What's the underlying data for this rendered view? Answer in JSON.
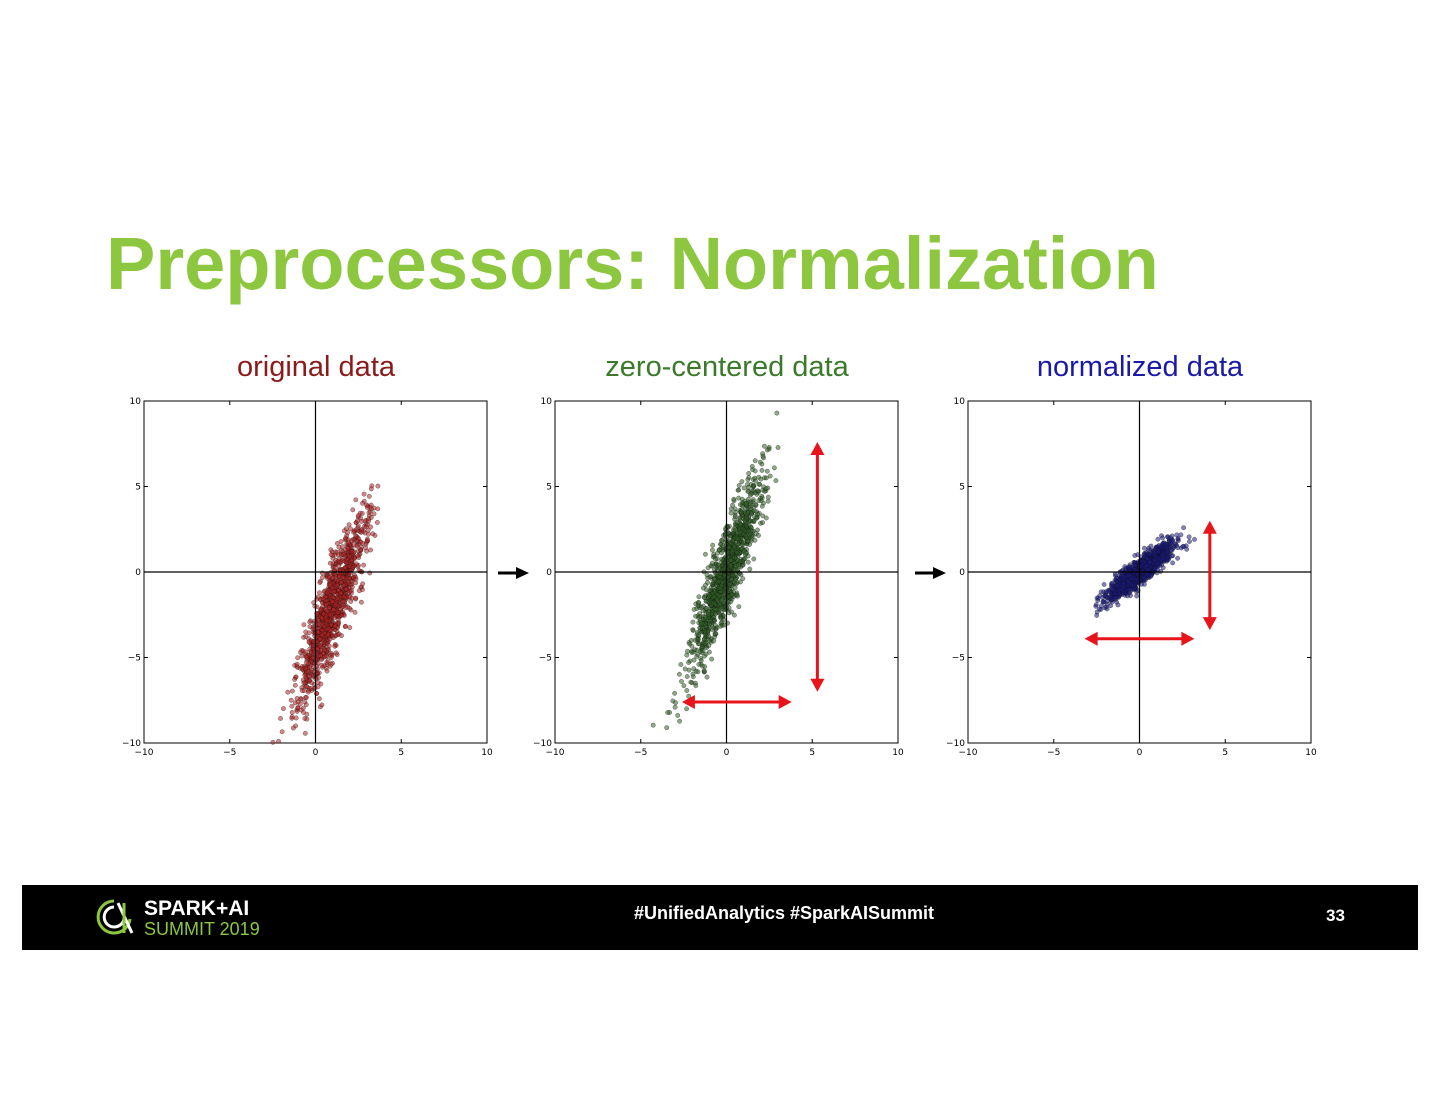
{
  "slide": {
    "title": "Preprocessors: Normalization",
    "title_color": "#8dc63f"
  },
  "chart_data": [
    {
      "type": "scatter",
      "title": "original data",
      "title_color": "#8b1a1a",
      "point_color": "#b22222",
      "xlim": [
        -10,
        10
      ],
      "ylim": [
        -10,
        10
      ],
      "ticks": [
        -10,
        -5,
        0,
        5,
        10
      ],
      "tick_labels": [
        "−10",
        "−5",
        "0",
        "5",
        "10"
      ],
      "distribution": {
        "center": [
          1.0,
          -2.0
        ],
        "major_std": 2.9,
        "minor_std": 0.45,
        "angle_deg": 71,
        "count": 1100
      },
      "arrows": []
    },
    {
      "type": "scatter",
      "title": "zero-centered data",
      "title_color": "#3a7a2a",
      "point_color": "#2f5f24",
      "xlim": [
        -10,
        10
      ],
      "ylim": [
        -10,
        10
      ],
      "ticks": [
        -10,
        -5,
        0,
        5,
        10
      ],
      "tick_labels": [
        "−10",
        "−5",
        "0",
        "5",
        "10"
      ],
      "distribution": {
        "center": [
          0,
          0
        ],
        "major_std": 2.9,
        "minor_std": 0.45,
        "angle_deg": 71,
        "count": 1100
      },
      "arrows": [
        {
          "orientation": "vertical",
          "x": 5.3,
          "from": -7,
          "to": 7.6
        },
        {
          "orientation": "horizontal",
          "y": -7.6,
          "from": -2.6,
          "to": 3.8
        }
      ]
    },
    {
      "type": "scatter",
      "title": "normalized data",
      "title_color": "#1a1aa6",
      "point_color": "#1a1a80",
      "xlim": [
        -10,
        10
      ],
      "ylim": [
        -10,
        10
      ],
      "ticks": [
        -10,
        -5,
        0,
        5,
        10
      ],
      "tick_labels": [
        "−10",
        "−5",
        "0",
        "5",
        "10"
      ],
      "distribution": {
        "center": [
          0,
          0
        ],
        "major_std": 1.25,
        "minor_std": 0.3,
        "angle_deg": 40,
        "count": 1100
      },
      "arrows": [
        {
          "orientation": "vertical",
          "x": 4.1,
          "from": -3.4,
          "to": 3.0
        },
        {
          "orientation": "horizontal",
          "y": -3.9,
          "from": -3.2,
          "to": 3.2
        }
      ]
    }
  ],
  "footer": {
    "logo_top": "SPARK+AI",
    "logo_bottom": "SUMMIT 2019",
    "hashtags": "#UnifiedAnalytics #SparkAISummit",
    "page_number": "33"
  }
}
